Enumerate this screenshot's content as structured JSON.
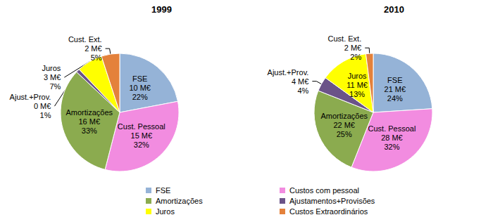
{
  "chart_data": [
    {
      "type": "pie",
      "title": "1999",
      "categories": [
        "FSE",
        "Cust. Pessoal",
        "Amortizações",
        "Ajust.+Prov.",
        "Juros",
        "Cust. Ext."
      ],
      "values": [
        22,
        32,
        33,
        1,
        7,
        5
      ],
      "value_labels": [
        "22%",
        "32%",
        "33%",
        "1%",
        "7%",
        "5%"
      ],
      "amounts": [
        10,
        15,
        16,
        0,
        3,
        2
      ],
      "amount_labels": [
        "10 M€",
        "15 M€",
        "16 M€",
        "0 M€",
        "3 M€",
        "2 M€"
      ],
      "colors": [
        "#95b3d7",
        "#f28ce0",
        "#8bab4f",
        "#6b5388",
        "#ffff00",
        "#e4813b"
      ],
      "data_labels": true
    },
    {
      "type": "pie",
      "title": "2010",
      "categories": [
        "FSE",
        "Cust. Pessoal",
        "Amortizações",
        "Ajust.+Prov.",
        "Juros",
        "Cust. Ext."
      ],
      "values": [
        24,
        32,
        25,
        4,
        13,
        2
      ],
      "value_labels": [
        "24%",
        "32%",
        "25%",
        "4%",
        "13%",
        "2%"
      ],
      "amounts": [
        21,
        28,
        22,
        4,
        11,
        2
      ],
      "amount_labels": [
        "21 M€",
        "28 M€",
        "22 M€",
        "4 M€",
        "11 M€",
        "2 M€"
      ],
      "colors": [
        "#95b3d7",
        "#f28ce0",
        "#8bab4f",
        "#6b5388",
        "#ffff00",
        "#e4813b"
      ],
      "data_labels": true
    }
  ],
  "legend": {
    "position": "bottom",
    "labels": [
      "FSE",
      "Custos com pessoal",
      "Amortizações",
      "Ajustamentos+Provisões",
      "Juros",
      "Custos Extraordinários"
    ]
  }
}
